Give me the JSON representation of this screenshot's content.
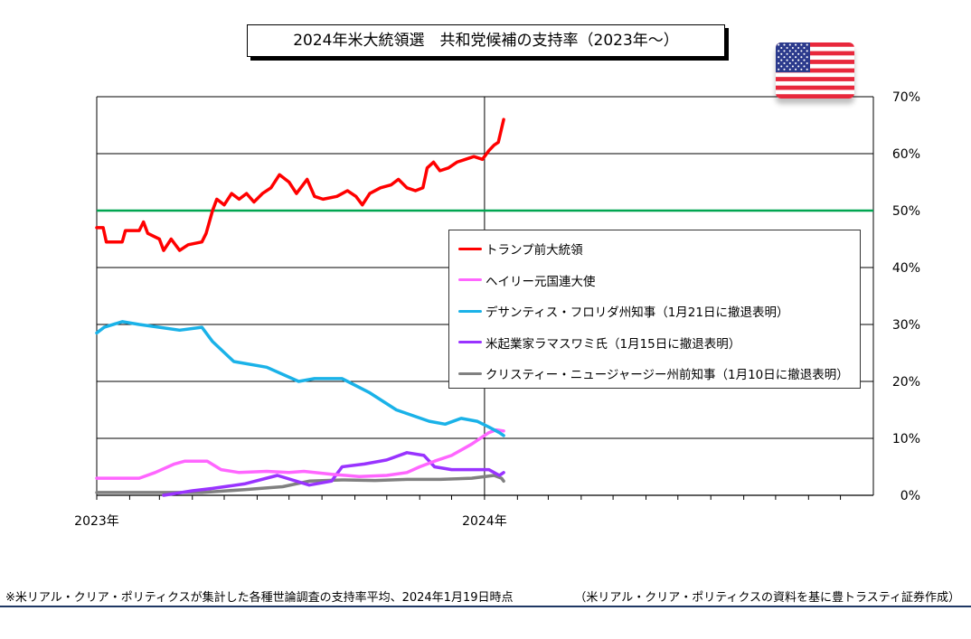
{
  "chart_data": {
    "type": "line",
    "title": "2024年米大統領選　共和党候補の支持率（2023年～）",
    "x_tick_labels": [
      "2023年",
      "2024年"
    ],
    "x_range": [
      "2023-01-01",
      "2024-12-31"
    ],
    "y_tick_labels": [
      "0%",
      "10%",
      "20%",
      "30%",
      "40%",
      "50%",
      "60%",
      "70%"
    ],
    "ylim": [
      0,
      70
    ],
    "y_axis_side": "right",
    "grid": true,
    "legend_placement": "center-right",
    "reference_line": {
      "y": 50,
      "color": "#00a651"
    },
    "series": [
      {
        "name": "トランプ前大統領",
        "color": "#ff0000",
        "points": [
          [
            "2023-01-01",
            47
          ],
          [
            "2023-01-07",
            47
          ],
          [
            "2023-01-10",
            44.5
          ],
          [
            "2023-01-25",
            44.5
          ],
          [
            "2023-01-28",
            46.5
          ],
          [
            "2023-02-10",
            46.5
          ],
          [
            "2023-02-14",
            48
          ],
          [
            "2023-02-18",
            46
          ],
          [
            "2023-03-01",
            45
          ],
          [
            "2023-03-05",
            43
          ],
          [
            "2023-03-12",
            45
          ],
          [
            "2023-03-20",
            43
          ],
          [
            "2023-03-28",
            44
          ],
          [
            "2023-04-10",
            44.5
          ],
          [
            "2023-04-14",
            46
          ],
          [
            "2023-04-20",
            50
          ],
          [
            "2023-04-24",
            52
          ],
          [
            "2023-05-01",
            51
          ],
          [
            "2023-05-08",
            53
          ],
          [
            "2023-05-15",
            52
          ],
          [
            "2023-05-22",
            53
          ],
          [
            "2023-05-29",
            51.5
          ],
          [
            "2023-06-06",
            53
          ],
          [
            "2023-06-14",
            54
          ],
          [
            "2023-06-22",
            56.3
          ],
          [
            "2023-07-01",
            55
          ],
          [
            "2023-07-08",
            53
          ],
          [
            "2023-07-18",
            55.5
          ],
          [
            "2023-07-25",
            52.5
          ],
          [
            "2023-08-02",
            52
          ],
          [
            "2023-08-15",
            52.5
          ],
          [
            "2023-08-25",
            53.5
          ],
          [
            "2023-09-02",
            52.5
          ],
          [
            "2023-09-08",
            51
          ],
          [
            "2023-09-15",
            53
          ],
          [
            "2023-09-25",
            54
          ],
          [
            "2023-10-05",
            54.5
          ],
          [
            "2023-10-12",
            55.5
          ],
          [
            "2023-10-20",
            54
          ],
          [
            "2023-10-28",
            53.5
          ],
          [
            "2023-11-04",
            54
          ],
          [
            "2023-11-08",
            57.5
          ],
          [
            "2023-11-14",
            58.5
          ],
          [
            "2023-11-20",
            57
          ],
          [
            "2023-11-28",
            57.5
          ],
          [
            "2023-12-06",
            58.5
          ],
          [
            "2023-12-14",
            59
          ],
          [
            "2023-12-22",
            59.5
          ],
          [
            "2023-12-30",
            59
          ],
          [
            "2024-01-05",
            60.5
          ],
          [
            "2024-01-10",
            61.5
          ],
          [
            "2024-01-14",
            62
          ],
          [
            "2024-01-19",
            66
          ]
        ]
      },
      {
        "name": "ヘイリー元国連大使",
        "color": "#ff66ff",
        "points": [
          [
            "2023-01-01",
            3
          ],
          [
            "2023-02-10",
            3
          ],
          [
            "2023-02-25",
            4
          ],
          [
            "2023-03-15",
            5.5
          ],
          [
            "2023-03-25",
            6
          ],
          [
            "2023-04-15",
            6
          ],
          [
            "2023-04-28",
            4.5
          ],
          [
            "2023-05-15",
            4
          ],
          [
            "2023-06-10",
            4.2
          ],
          [
            "2023-07-01",
            4
          ],
          [
            "2023-07-15",
            4.2
          ],
          [
            "2023-08-10",
            3.7
          ],
          [
            "2023-09-05",
            3.3
          ],
          [
            "2023-10-01",
            3.5
          ],
          [
            "2023-10-20",
            4
          ],
          [
            "2023-11-01",
            5
          ],
          [
            "2023-11-15",
            6
          ],
          [
            "2023-12-01",
            7
          ],
          [
            "2023-12-20",
            9
          ],
          [
            "2024-01-05",
            11
          ],
          [
            "2024-01-12",
            11.5
          ],
          [
            "2024-01-19",
            11.3
          ]
        ]
      },
      {
        "name": "デサンティス・フロリダ州知事（1月21日に撤退表明）",
        "color": "#1ab2e8",
        "points": [
          [
            "2023-01-01",
            28.5
          ],
          [
            "2023-01-08",
            29.5
          ],
          [
            "2023-01-25",
            30.5
          ],
          [
            "2023-02-10",
            30
          ],
          [
            "2023-03-01",
            29.5
          ],
          [
            "2023-03-20",
            29
          ],
          [
            "2023-04-10",
            29.5
          ],
          [
            "2023-04-20",
            27
          ],
          [
            "2023-05-10",
            23.5
          ],
          [
            "2023-06-10",
            22.5
          ],
          [
            "2023-07-10",
            20
          ],
          [
            "2023-07-25",
            20.5
          ],
          [
            "2023-08-20",
            20.5
          ],
          [
            "2023-09-15",
            18
          ],
          [
            "2023-10-10",
            15
          ],
          [
            "2023-11-10",
            13
          ],
          [
            "2023-11-25",
            12.5
          ],
          [
            "2023-12-10",
            13.5
          ],
          [
            "2023-12-25",
            13
          ],
          [
            "2024-01-05",
            12
          ],
          [
            "2024-01-15",
            11
          ],
          [
            "2024-01-19",
            10.5
          ]
        ]
      },
      {
        "name": "米起業家ラマスワミ氏（1月15日に撤退表明）",
        "color": "#9933ff",
        "points": [
          [
            "2023-03-05",
            0
          ],
          [
            "2023-04-01",
            0.8
          ],
          [
            "2023-04-20",
            1.2
          ],
          [
            "2023-05-20",
            2
          ],
          [
            "2023-06-20",
            3.5
          ],
          [
            "2023-07-20",
            1.8
          ],
          [
            "2023-08-10",
            2.5
          ],
          [
            "2023-08-20",
            5
          ],
          [
            "2023-09-10",
            5.5
          ],
          [
            "2023-10-01",
            6.2
          ],
          [
            "2023-10-20",
            7.5
          ],
          [
            "2023-11-05",
            7
          ],
          [
            "2023-11-15",
            5
          ],
          [
            "2023-12-01",
            4.5
          ],
          [
            "2024-01-05",
            4.5
          ],
          [
            "2024-01-15",
            3.5
          ],
          [
            "2024-01-19",
            4
          ]
        ]
      },
      {
        "name": "クリスティー・ニュージャージー州前知事（1月10日に撤退表明）",
        "color": "#808080",
        "points": [
          [
            "2023-01-01",
            0.5
          ],
          [
            "2023-04-10",
            0.5
          ],
          [
            "2023-05-20",
            1
          ],
          [
            "2023-06-25",
            1.5
          ],
          [
            "2023-07-20",
            2.5
          ],
          [
            "2023-08-20",
            2.7
          ],
          [
            "2023-09-20",
            2.6
          ],
          [
            "2023-10-20",
            2.8
          ],
          [
            "2023-11-20",
            2.8
          ],
          [
            "2023-12-20",
            3
          ],
          [
            "2024-01-10",
            3.5
          ],
          [
            "2024-01-17",
            3
          ],
          [
            "2024-01-19",
            2.5
          ]
        ]
      }
    ]
  },
  "footer": {
    "note": "※米リアル・クリア・ポリティクスが集計した各種世論調査の支持率平均、2024年1月19日時点",
    "source": "（米リアル・クリア・ポリティクスの資料を基に豊トラスティ証券作成）"
  },
  "flag": {
    "name": "us-flag-icon",
    "colors": {
      "red": "#e8283c",
      "white": "#ffffff",
      "blue": "#2b3a8c"
    }
  }
}
